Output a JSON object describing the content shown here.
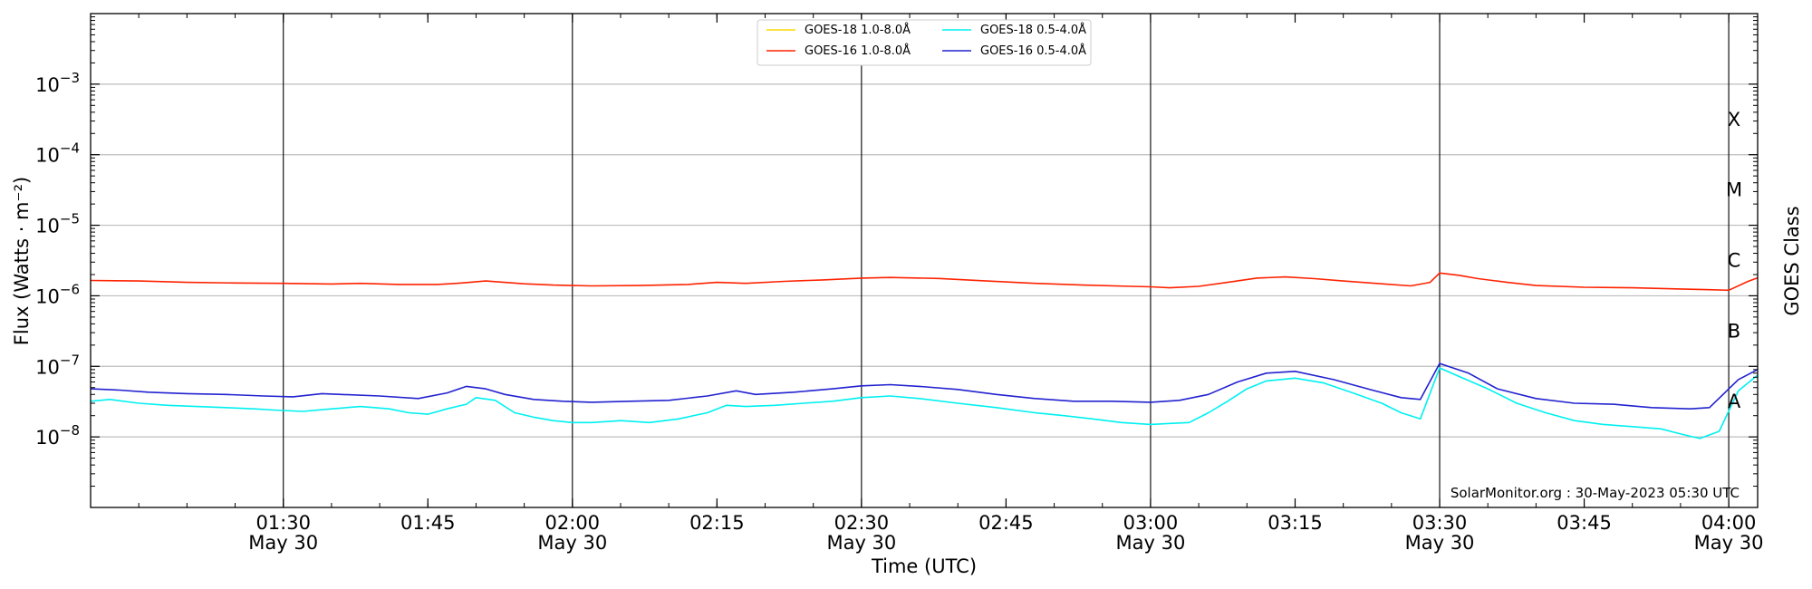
{
  "chart_data": {
    "type": "line",
    "xlabel": "Time (UTC)",
    "ylabel": "Flux (Watts · m⁻²)",
    "ylabel_right": "GOES Class",
    "yscale": "log",
    "xlim": [
      "01:10",
      "04:03"
    ],
    "ylim": [
      1e-09,
      0.01
    ],
    "grid": true,
    "legend_position": "top-center",
    "watermark": "SolarMonitor.org : 30-May-2023 05:30 UTC",
    "x_ticks": [
      {
        "time": "01:30",
        "label": "01:30",
        "sublabel": "May 30"
      },
      {
        "time": "01:45",
        "label": "01:45",
        "sublabel": ""
      },
      {
        "time": "02:00",
        "label": "02:00",
        "sublabel": "May 30"
      },
      {
        "time": "02:15",
        "label": "02:15",
        "sublabel": ""
      },
      {
        "time": "02:30",
        "label": "02:30",
        "sublabel": "May 30"
      },
      {
        "time": "02:45",
        "label": "02:45",
        "sublabel": ""
      },
      {
        "time": "03:00",
        "label": "03:00",
        "sublabel": "May 30"
      },
      {
        "time": "03:15",
        "label": "03:15",
        "sublabel": ""
      },
      {
        "time": "03:30",
        "label": "03:30",
        "sublabel": "May 30"
      },
      {
        "time": "03:45",
        "label": "03:45",
        "sublabel": ""
      },
      {
        "time": "04:00",
        "label": "04:00",
        "sublabel": "May 30"
      }
    ],
    "y_ticks": [
      {
        "value": 0.001,
        "base": "10",
        "exp": "−3"
      },
      {
        "value": 0.0001,
        "base": "10",
        "exp": "−4"
      },
      {
        "value": 1e-05,
        "base": "10",
        "exp": "−5"
      },
      {
        "value": 1e-06,
        "base": "10",
        "exp": "−6"
      },
      {
        "value": 1e-07,
        "base": "10",
        "exp": "−7"
      },
      {
        "value": 1e-08,
        "base": "10",
        "exp": "−8"
      }
    ],
    "goes_classes": [
      {
        "label": "X",
        "value": 0.000316
      },
      {
        "label": "M",
        "value": 3.16e-05
      },
      {
        "label": "C",
        "value": 3.16e-06
      },
      {
        "label": "B",
        "value": 3.16e-07
      },
      {
        "label": "A",
        "value": 3.16e-08
      }
    ],
    "vlines": [
      "01:30",
      "02:00",
      "02:30",
      "03:00",
      "03:30",
      "04:00"
    ],
    "series": [
      {
        "name": "GOES-18 1.0-8.0Å",
        "color": "#ffd700",
        "x": [],
        "y": []
      },
      {
        "name": "GOES-16 1.0-8.0Å",
        "color": "#ff2200",
        "x": [
          "01:10",
          "01:15",
          "01:20",
          "01:25",
          "01:30",
          "01:35",
          "01:38",
          "01:42",
          "01:46",
          "01:48",
          "01:51",
          "01:55",
          "01:58",
          "02:02",
          "02:07",
          "02:12",
          "02:15",
          "02:18",
          "02:22",
          "02:26",
          "02:30",
          "02:33",
          "02:38",
          "02:43",
          "02:48",
          "02:53",
          "02:58",
          "03:00",
          "03:02",
          "03:05",
          "03:08",
          "03:11",
          "03:14",
          "03:17",
          "03:20",
          "03:24",
          "03:27",
          "03:29",
          "03:30",
          "03:32",
          "03:34",
          "03:37",
          "03:40",
          "03:45",
          "03:50",
          "03:55",
          "03:58",
          "04:00",
          "04:02",
          "04:03"
        ],
        "y": [
          1.65e-06,
          1.62e-06,
          1.55e-06,
          1.52e-06,
          1.5e-06,
          1.47e-06,
          1.5e-06,
          1.45e-06,
          1.45e-06,
          1.5e-06,
          1.62e-06,
          1.48e-06,
          1.42e-06,
          1.38e-06,
          1.4e-06,
          1.45e-06,
          1.55e-06,
          1.5e-06,
          1.6e-06,
          1.68e-06,
          1.78e-06,
          1.82e-06,
          1.76e-06,
          1.62e-06,
          1.5e-06,
          1.42e-06,
          1.36e-06,
          1.34e-06,
          1.3e-06,
          1.36e-06,
          1.55e-06,
          1.78e-06,
          1.85e-06,
          1.75e-06,
          1.62e-06,
          1.48e-06,
          1.38e-06,
          1.55e-06,
          2.1e-06,
          1.95e-06,
          1.75e-06,
          1.55e-06,
          1.4e-06,
          1.32e-06,
          1.3e-06,
          1.25e-06,
          1.22e-06,
          1.2e-06,
          1.6e-06,
          1.8e-06
        ]
      },
      {
        "name": "GOES-18 0.5-4.0Å",
        "color": "#00f0f0",
        "x": [
          "01:10",
          "01:12",
          "01:15",
          "01:18",
          "01:21",
          "01:24",
          "01:27",
          "01:29",
          "01:32",
          "01:35",
          "01:38",
          "01:41",
          "01:43",
          "01:45",
          "01:47",
          "01:49",
          "01:50",
          "01:52",
          "01:54",
          "01:56",
          "01:58",
          "02:00",
          "02:02",
          "02:05",
          "02:08",
          "02:11",
          "02:14",
          "02:16",
          "02:18",
          "02:21",
          "02:24",
          "02:27",
          "02:30",
          "02:33",
          "02:36",
          "02:40",
          "02:44",
          "02:48",
          "02:51",
          "02:54",
          "02:57",
          "03:00",
          "03:02",
          "03:04",
          "03:06",
          "03:08",
          "03:10",
          "03:12",
          "03:15",
          "03:18",
          "03:21",
          "03:24",
          "03:26",
          "03:28",
          "03:30",
          "03:32",
          "03:35",
          "03:38",
          "03:41",
          "03:44",
          "03:47",
          "03:50",
          "03:53",
          "03:55",
          "03:57",
          "03:59",
          "04:01",
          "04:03"
        ],
        "y": [
          3.2e-08,
          3.4e-08,
          3e-08,
          2.8e-08,
          2.7e-08,
          2.6e-08,
          2.5e-08,
          2.4e-08,
          2.3e-08,
          2.5e-08,
          2.7e-08,
          2.5e-08,
          2.2e-08,
          2.1e-08,
          2.5e-08,
          2.9e-08,
          3.6e-08,
          3.3e-08,
          2.2e-08,
          1.9e-08,
          1.7e-08,
          1.6e-08,
          1.6e-08,
          1.7e-08,
          1.6e-08,
          1.8e-08,
          2.2e-08,
          2.8e-08,
          2.7e-08,
          2.8e-08,
          3e-08,
          3.2e-08,
          3.6e-08,
          3.8e-08,
          3.5e-08,
          3e-08,
          2.6e-08,
          2.2e-08,
          2e-08,
          1.8e-08,
          1.6e-08,
          1.5e-08,
          1.55e-08,
          1.6e-08,
          2.2e-08,
          3.2e-08,
          4.8e-08,
          6.2e-08,
          6.8e-08,
          5.8e-08,
          4.2e-08,
          3e-08,
          2.2e-08,
          1.8e-08,
          9.5e-08,
          7.2e-08,
          4.8e-08,
          3e-08,
          2.2e-08,
          1.7e-08,
          1.5e-08,
          1.4e-08,
          1.3e-08,
          1.1e-08,
          9.5e-09,
          1.2e-08,
          4.5e-08,
          7.5e-08
        ]
      },
      {
        "name": "GOES-16 0.5-4.0Å",
        "color": "#2222d0",
        "x": [
          "01:10",
          "01:13",
          "01:16",
          "01:20",
          "01:24",
          "01:28",
          "01:31",
          "01:34",
          "01:36",
          "01:40",
          "01:44",
          "01:47",
          "01:49",
          "01:51",
          "01:53",
          "01:56",
          "01:59",
          "02:02",
          "02:06",
          "02:10",
          "02:14",
          "02:17",
          "02:19",
          "02:23",
          "02:27",
          "02:30",
          "02:33",
          "02:36",
          "02:40",
          "02:44",
          "02:48",
          "02:52",
          "02:56",
          "03:00",
          "03:03",
          "03:06",
          "03:09",
          "03:12",
          "03:15",
          "03:19",
          "03:23",
          "03:26",
          "03:28",
          "03:30",
          "03:33",
          "03:36",
          "03:40",
          "03:44",
          "03:48",
          "03:52",
          "03:56",
          "03:58",
          "04:01",
          "04:03"
        ],
        "y": [
          4.8e-08,
          4.6e-08,
          4.3e-08,
          4.1e-08,
          4e-08,
          3.8e-08,
          3.7e-08,
          4.1e-08,
          4e-08,
          3.8e-08,
          3.5e-08,
          4.2e-08,
          5.2e-08,
          4.8e-08,
          4e-08,
          3.4e-08,
          3.2e-08,
          3.1e-08,
          3.2e-08,
          3.3e-08,
          3.8e-08,
          4.5e-08,
          4e-08,
          4.3e-08,
          4.8e-08,
          5.3e-08,
          5.5e-08,
          5.2e-08,
          4.7e-08,
          4e-08,
          3.5e-08,
          3.2e-08,
          3.2e-08,
          3.1e-08,
          3.3e-08,
          4e-08,
          6e-08,
          8e-08,
          8.5e-08,
          6.5e-08,
          4.6e-08,
          3.6e-08,
          3.4e-08,
          1.1e-07,
          8e-08,
          4.8e-08,
          3.5e-08,
          3e-08,
          2.9e-08,
          2.6e-08,
          2.5e-08,
          2.6e-08,
          6.5e-08,
          9e-08
        ]
      }
    ]
  }
}
